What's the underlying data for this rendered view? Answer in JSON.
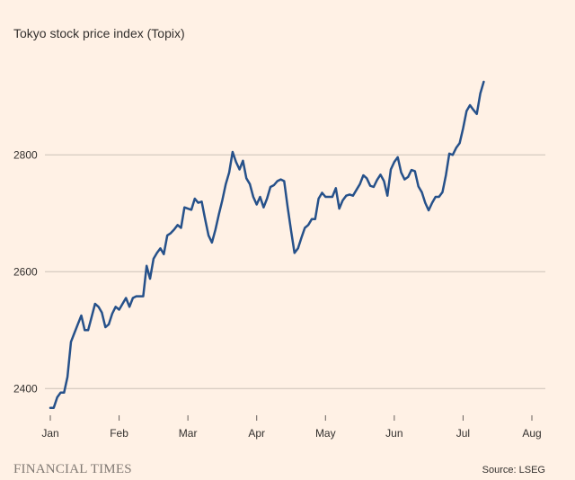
{
  "chart_data": {
    "type": "line",
    "title": "Tokyo stock price index (Topix)",
    "source": "Source: LSEG",
    "brand": "FINANCIAL TIMES",
    "categories": [
      "Jan",
      null,
      null,
      null,
      null,
      null,
      null,
      null,
      null,
      null,
      null,
      null,
      null,
      null,
      null,
      null,
      null,
      null,
      null,
      null,
      "Feb",
      null,
      null,
      null,
      null,
      null,
      null,
      null,
      null,
      null,
      null,
      null,
      null,
      null,
      null,
      null,
      null,
      null,
      null,
      null,
      "Mar",
      null,
      null,
      null,
      null,
      null,
      null,
      null,
      null,
      null,
      null,
      null,
      null,
      null,
      null,
      null,
      null,
      null,
      null,
      null,
      "Apr",
      null,
      null,
      null,
      null,
      null,
      null,
      null,
      null,
      null,
      null,
      null,
      null,
      null,
      null,
      null,
      null,
      null,
      null,
      null,
      "May",
      null,
      null,
      null,
      null,
      null,
      null,
      null,
      null,
      null,
      null,
      null,
      null,
      null,
      null,
      null,
      null,
      null,
      null,
      null,
      "Jun",
      null,
      null,
      null,
      null,
      null,
      null,
      null,
      null,
      null,
      null,
      null,
      null,
      null,
      null,
      null,
      null,
      null,
      null,
      null,
      "Jul",
      null,
      null,
      null,
      null,
      null,
      null,
      null,
      null,
      null,
      null,
      null,
      null,
      null,
      null,
      null,
      null,
      null,
      null,
      null,
      "Aug"
    ],
    "series": [
      {
        "name": "Topix",
        "color": "#26518a",
        "values": [
          2367,
          2367,
          2385,
          2393,
          2393,
          2420,
          2480,
          2495,
          2510,
          2525,
          2500,
          2500,
          2522,
          2545,
          2540,
          2530,
          2505,
          2510,
          2528,
          2540,
          2535,
          2545,
          2555,
          2540,
          2555,
          2558,
          2558,
          2558,
          2610,
          2588,
          2622,
          2632,
          2640,
          2630,
          2662,
          2666,
          2672,
          2680,
          2675,
          2710,
          2708,
          2706,
          2725,
          2718,
          2720,
          2690,
          2662,
          2650,
          2672,
          2698,
          2722,
          2750,
          2770,
          2805,
          2788,
          2775,
          2790,
          2760,
          2750,
          2728,
          2715,
          2728,
          2710,
          2725,
          2745,
          2748,
          2755,
          2758,
          2755,
          2710,
          2670,
          2632,
          2640,
          2658,
          2675,
          2680,
          2690,
          2690,
          2725,
          2735,
          2728,
          2728,
          2728,
          2743,
          2708,
          2722,
          2730,
          2732,
          2730,
          2740,
          2750,
          2765,
          2760,
          2747,
          2745,
          2757,
          2766,
          2755,
          2730,
          2775,
          2788,
          2796,
          2770,
          2758,
          2762,
          2774,
          2772,
          2746,
          2736,
          2718,
          2705,
          2718,
          2728,
          2728,
          2736,
          2765,
          2802,
          2800,
          2812,
          2820,
          2845,
          2875,
          2885,
          2877,
          2870,
          2905,
          2925,
          null,
          null,
          null,
          null,
          null,
          null,
          null,
          null,
          null,
          null,
          null,
          null,
          null,
          null
        ]
      }
    ],
    "ylim": [
      2365,
      2960
    ],
    "yticks": [
      2400,
      2600,
      2800
    ],
    "grid": true
  }
}
